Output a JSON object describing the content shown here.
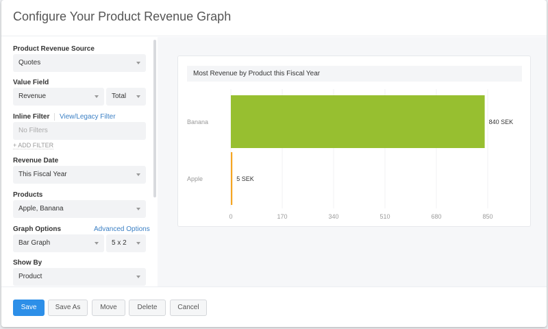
{
  "header": {
    "title": "Configure Your Product Revenue Graph"
  },
  "form": {
    "source_label": "Product Revenue Source",
    "source_value": "Quotes",
    "value_field_label": "Value Field",
    "value_field_value": "Revenue",
    "aggregate_value": "Total",
    "inline_filter_label": "Inline Filter",
    "legacy_filter_link": "View/Legacy Filter",
    "filter_placeholder": "No Filters",
    "add_filter": "+ ADD FILTER",
    "revenue_date_label": "Revenue Date",
    "revenue_date_value": "This Fiscal Year",
    "products_label": "Products",
    "products_value": "Apple, Banana",
    "graph_options_label": "Graph Options",
    "advanced_options_link": "Advanced Options",
    "graph_type_value": "Bar Graph",
    "graph_size_value": "5 x 2",
    "show_by_label": "Show By",
    "show_by_value": "Product"
  },
  "footer": {
    "save": "Save",
    "save_as": "Save As",
    "move": "Move",
    "delete": "Delete",
    "cancel": "Cancel"
  },
  "chart_data": {
    "type": "bar",
    "orientation": "horizontal",
    "title": "Most Revenue by Product this Fiscal Year",
    "categories": [
      "Banana",
      "Apple"
    ],
    "values": [
      840,
      5
    ],
    "data_labels": [
      "840 SEK",
      "5 SEK"
    ],
    "colors": [
      "#97bf30",
      "#f5a623"
    ],
    "xlim": [
      0,
      850
    ],
    "xticks": [
      "0",
      "170",
      "340",
      "510",
      "680",
      "850"
    ],
    "grid": true
  }
}
